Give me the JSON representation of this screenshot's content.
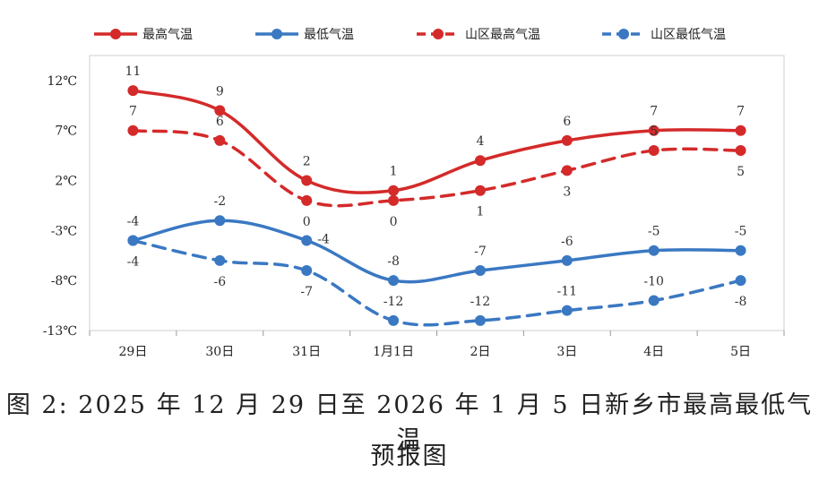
{
  "chart_data": {
    "type": "line",
    "categories": [
      "29日",
      "30日",
      "31日",
      "1月1日",
      "2日",
      "3日",
      "4日",
      "5日"
    ],
    "yticks": [
      "12℃",
      "7℃",
      "2℃",
      "-3℃",
      "-8℃",
      "-13℃"
    ],
    "ytick_values": [
      12,
      7,
      2,
      -3,
      -8,
      -13
    ],
    "ylim": [
      -13,
      14.5
    ],
    "grid": false,
    "legend_position": "top",
    "series": [
      {
        "name": "最高气温",
        "values": [
          11,
          9,
          2,
          1,
          4,
          6,
          7,
          7
        ],
        "color": "#d42a2a",
        "dash": false,
        "label_pos": [
          "above",
          "above",
          "above",
          "above",
          "above",
          "above",
          "above",
          "above"
        ]
      },
      {
        "name": "最低气温",
        "values": [
          -4,
          -2,
          -4,
          -8,
          -7,
          -6,
          -5,
          -5
        ],
        "color": "#3a78c2",
        "dash": false,
        "label_pos": [
          "above",
          "above",
          "right",
          "above",
          "above",
          "above",
          "above",
          "above"
        ]
      },
      {
        "name": "山区最高气温",
        "values": [
          7,
          6,
          0,
          0,
          1,
          3,
          5,
          5
        ],
        "color": "#d42a2a",
        "dash": true,
        "label_pos": [
          "above",
          "above",
          "below",
          "below",
          "below",
          "below",
          "above",
          "below"
        ]
      },
      {
        "name": "山区最低气温",
        "values": [
          -4,
          -6,
          -7,
          -12,
          -12,
          -11,
          -10,
          -8
        ],
        "color": "#3a78c2",
        "dash": true,
        "label_pos": [
          "below",
          "below",
          "below",
          "above",
          "above",
          "above",
          "above",
          "below"
        ]
      }
    ]
  },
  "caption": {
    "line1": "图 2: 2025 年 12 月 29 日至 2026 年 1 月 5 日新乡市最高最低气温",
    "line2": "预报图"
  }
}
